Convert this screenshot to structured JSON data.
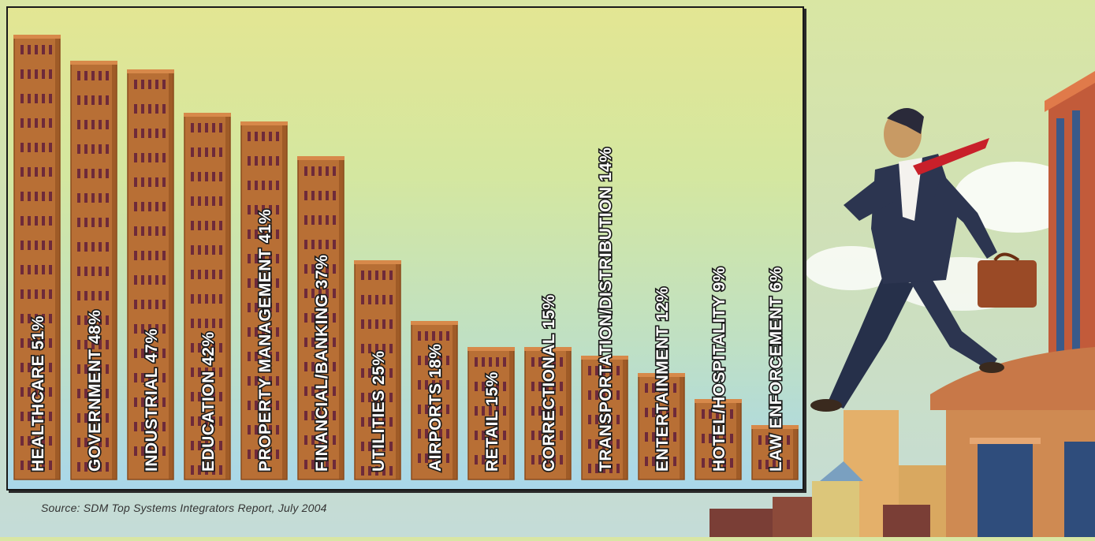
{
  "chart_data": {
    "type": "bar",
    "categories": [
      "HEALTHCARE",
      "GOVERNMENT",
      "INDUSTRIAL",
      "EDUCATION",
      "PROPERTY MANAGEMENT",
      "FINANCIAL/BANKING",
      "UTILITIES",
      "AIRPORTS",
      "RETAIL",
      "CORRECTIONAL",
      "TRANSPORTATION/DISTRIBUTION",
      "ENTERTAINMENT",
      "HOTEL/HOSPITALITY",
      "LAW ENFORCEMENT"
    ],
    "values": [
      51,
      48,
      47,
      42,
      41,
      37,
      25,
      18,
      15,
      15,
      14,
      12,
      9,
      6
    ],
    "value_labels": [
      "51%",
      "48%",
      "47%",
      "42%",
      "41%",
      "37%",
      "25%",
      "18%",
      "15%",
      "15%",
      "14%",
      "12%",
      "9%",
      "6%"
    ],
    "unit": "%",
    "ylim": [
      0,
      53
    ],
    "grid": false,
    "legend": "none",
    "colors": {
      "bar_face": "#b86f35",
      "bar_side": "#8a4a1c",
      "window": "#6e2a3a",
      "label": "#ffffff",
      "label_outline": "#1a1a1a"
    }
  },
  "source": "Source: SDM Top Systems Integrators Report, July 2004",
  "illustration": {
    "subject": "businessman-walking-on-rooftop-icon",
    "colors": {
      "suit": "#2c3550",
      "tie": "#c8202a",
      "briefcase": "#9a4a26",
      "sky": "#cfe6ea"
    }
  }
}
